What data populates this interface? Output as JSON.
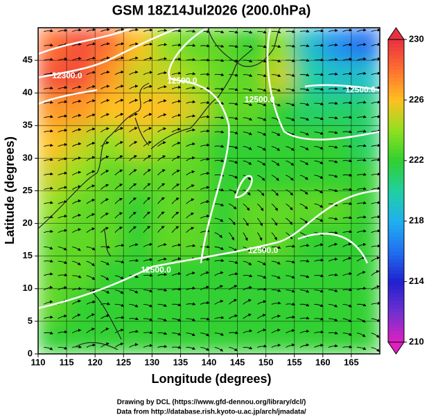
{
  "chart_data": {
    "type": "heatmap",
    "title": "GSM 18Z14Jul2026 (200.0hPa)",
    "x_label": "Longitude (degrees)",
    "y_label": "Latitude (degrees)",
    "x": [
      112.5,
      117.5,
      122.5,
      127.5,
      132.5,
      137.5,
      142.5,
      147.5,
      152.5,
      157.5,
      162.5,
      167.5
    ],
    "y": [
      2.5,
      7.5,
      12.5,
      17.5,
      22.5,
      27.5,
      32.5,
      37.5,
      42.5,
      47.5
    ],
    "z": [
      [
        222,
        222,
        222,
        222,
        222,
        222,
        222,
        222,
        222,
        222,
        222,
        222
      ],
      [
        223,
        222,
        222,
        222,
        222,
        222,
        222,
        222,
        222,
        222,
        222,
        222
      ],
      [
        223,
        223,
        222,
        222,
        222,
        222,
        222,
        222,
        222,
        222,
        222,
        222
      ],
      [
        223,
        223,
        223,
        222,
        223,
        223,
        222,
        223,
        223,
        222,
        222,
        222
      ],
      [
        224,
        223,
        223,
        222,
        223,
        223,
        222,
        223,
        223,
        223,
        223,
        222
      ],
      [
        225,
        224,
        223,
        223,
        223,
        223,
        222,
        222,
        222,
        222,
        222,
        222
      ],
      [
        226,
        225,
        224,
        225,
        224,
        223,
        222,
        222,
        222,
        222,
        222,
        221
      ],
      [
        227,
        227,
        226,
        226,
        226,
        225,
        223,
        223,
        222,
        221,
        221,
        221
      ],
      [
        229,
        229,
        227,
        225,
        225,
        224,
        223,
        223,
        225,
        220,
        219,
        219
      ],
      [
        228,
        229,
        228,
        226,
        224,
        223,
        223,
        222,
        224,
        219,
        217,
        216
      ]
    ],
    "xlim": [
      110,
      170
    ],
    "ylim": [
      0,
      50
    ],
    "xticks": [
      110,
      115,
      120,
      125,
      130,
      135,
      140,
      145,
      150,
      155,
      160,
      165
    ],
    "yticks": [
      0,
      5,
      10,
      15,
      20,
      25,
      30,
      35,
      40,
      45
    ],
    "grid": true,
    "clim": [
      210,
      230
    ],
    "cticks": [
      210,
      214,
      218,
      222,
      226,
      230
    ],
    "colormap": [
      "#e020c0",
      "#7030d0",
      "#2020d0",
      "#2070f0",
      "#20b0f0",
      "#20d0a0",
      "#30d030",
      "#90e020",
      "#ffc020",
      "#ff7030",
      "#e83040"
    ],
    "annotations": [
      {
        "text": "12300.0",
        "x": 115.1,
        "y": 42.6
      },
      {
        "text": "12500.0",
        "x": 135.3,
        "y": 41.8
      },
      {
        "text": "12500.0",
        "x": 148.9,
        "y": 38.9
      },
      {
        "text": "12500.0",
        "x": 166.6,
        "y": 40.4
      },
      {
        "text": "12500.0",
        "x": 149.5,
        "y": 15.8
      },
      {
        "text": "12500.0",
        "x": 130.7,
        "y": 12.8
      }
    ]
  },
  "footer": [
    "Drawing by DCL (https://www.gfd-dennou.org/library/dcl/)",
    "Data from http://database.rish.kyoto-u.ac.jp/arch/jmadata/"
  ]
}
